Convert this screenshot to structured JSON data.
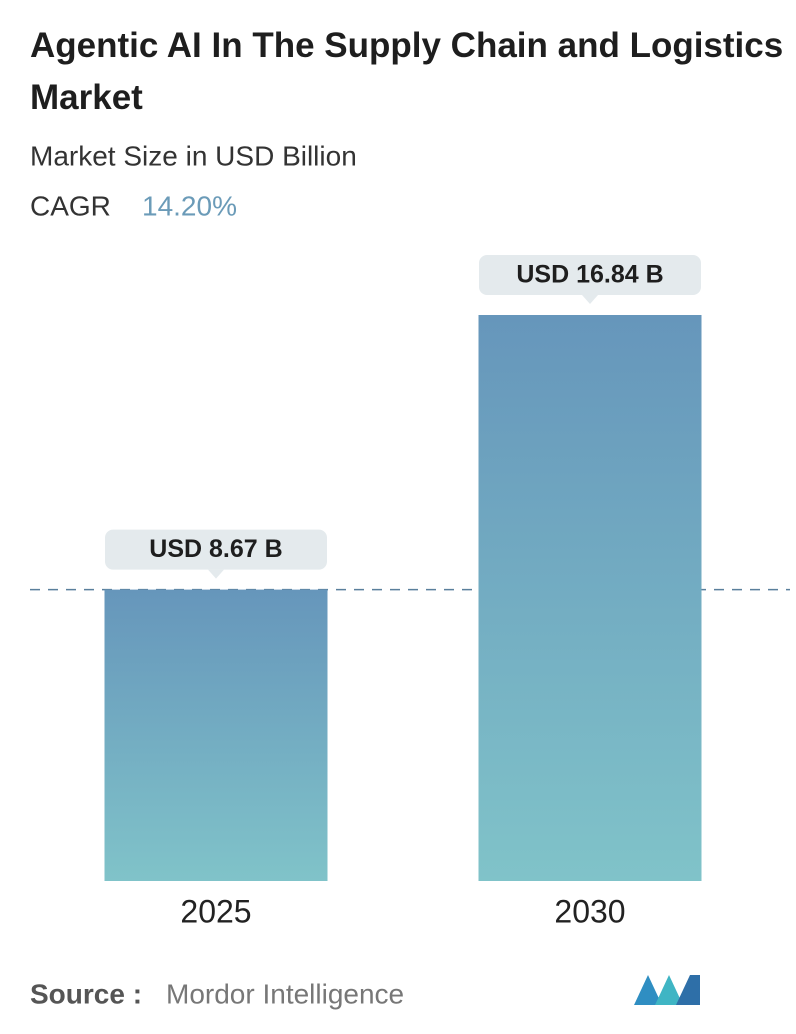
{
  "chart_data": {
    "type": "bar",
    "title": "Agentic AI In The Supply Chain and Logistics Market",
    "subtitle": "Market Size in USD Billion",
    "cagr_label": "CAGR",
    "cagr_value": "14.20%",
    "categories": [
      "2025",
      "2030"
    ],
    "values": [
      8.67,
      16.84
    ],
    "value_labels": [
      "USD 8.67 B",
      "USD 16.84 B"
    ],
    "source_label": "Source :",
    "source": "Mordor Intelligence"
  }
}
